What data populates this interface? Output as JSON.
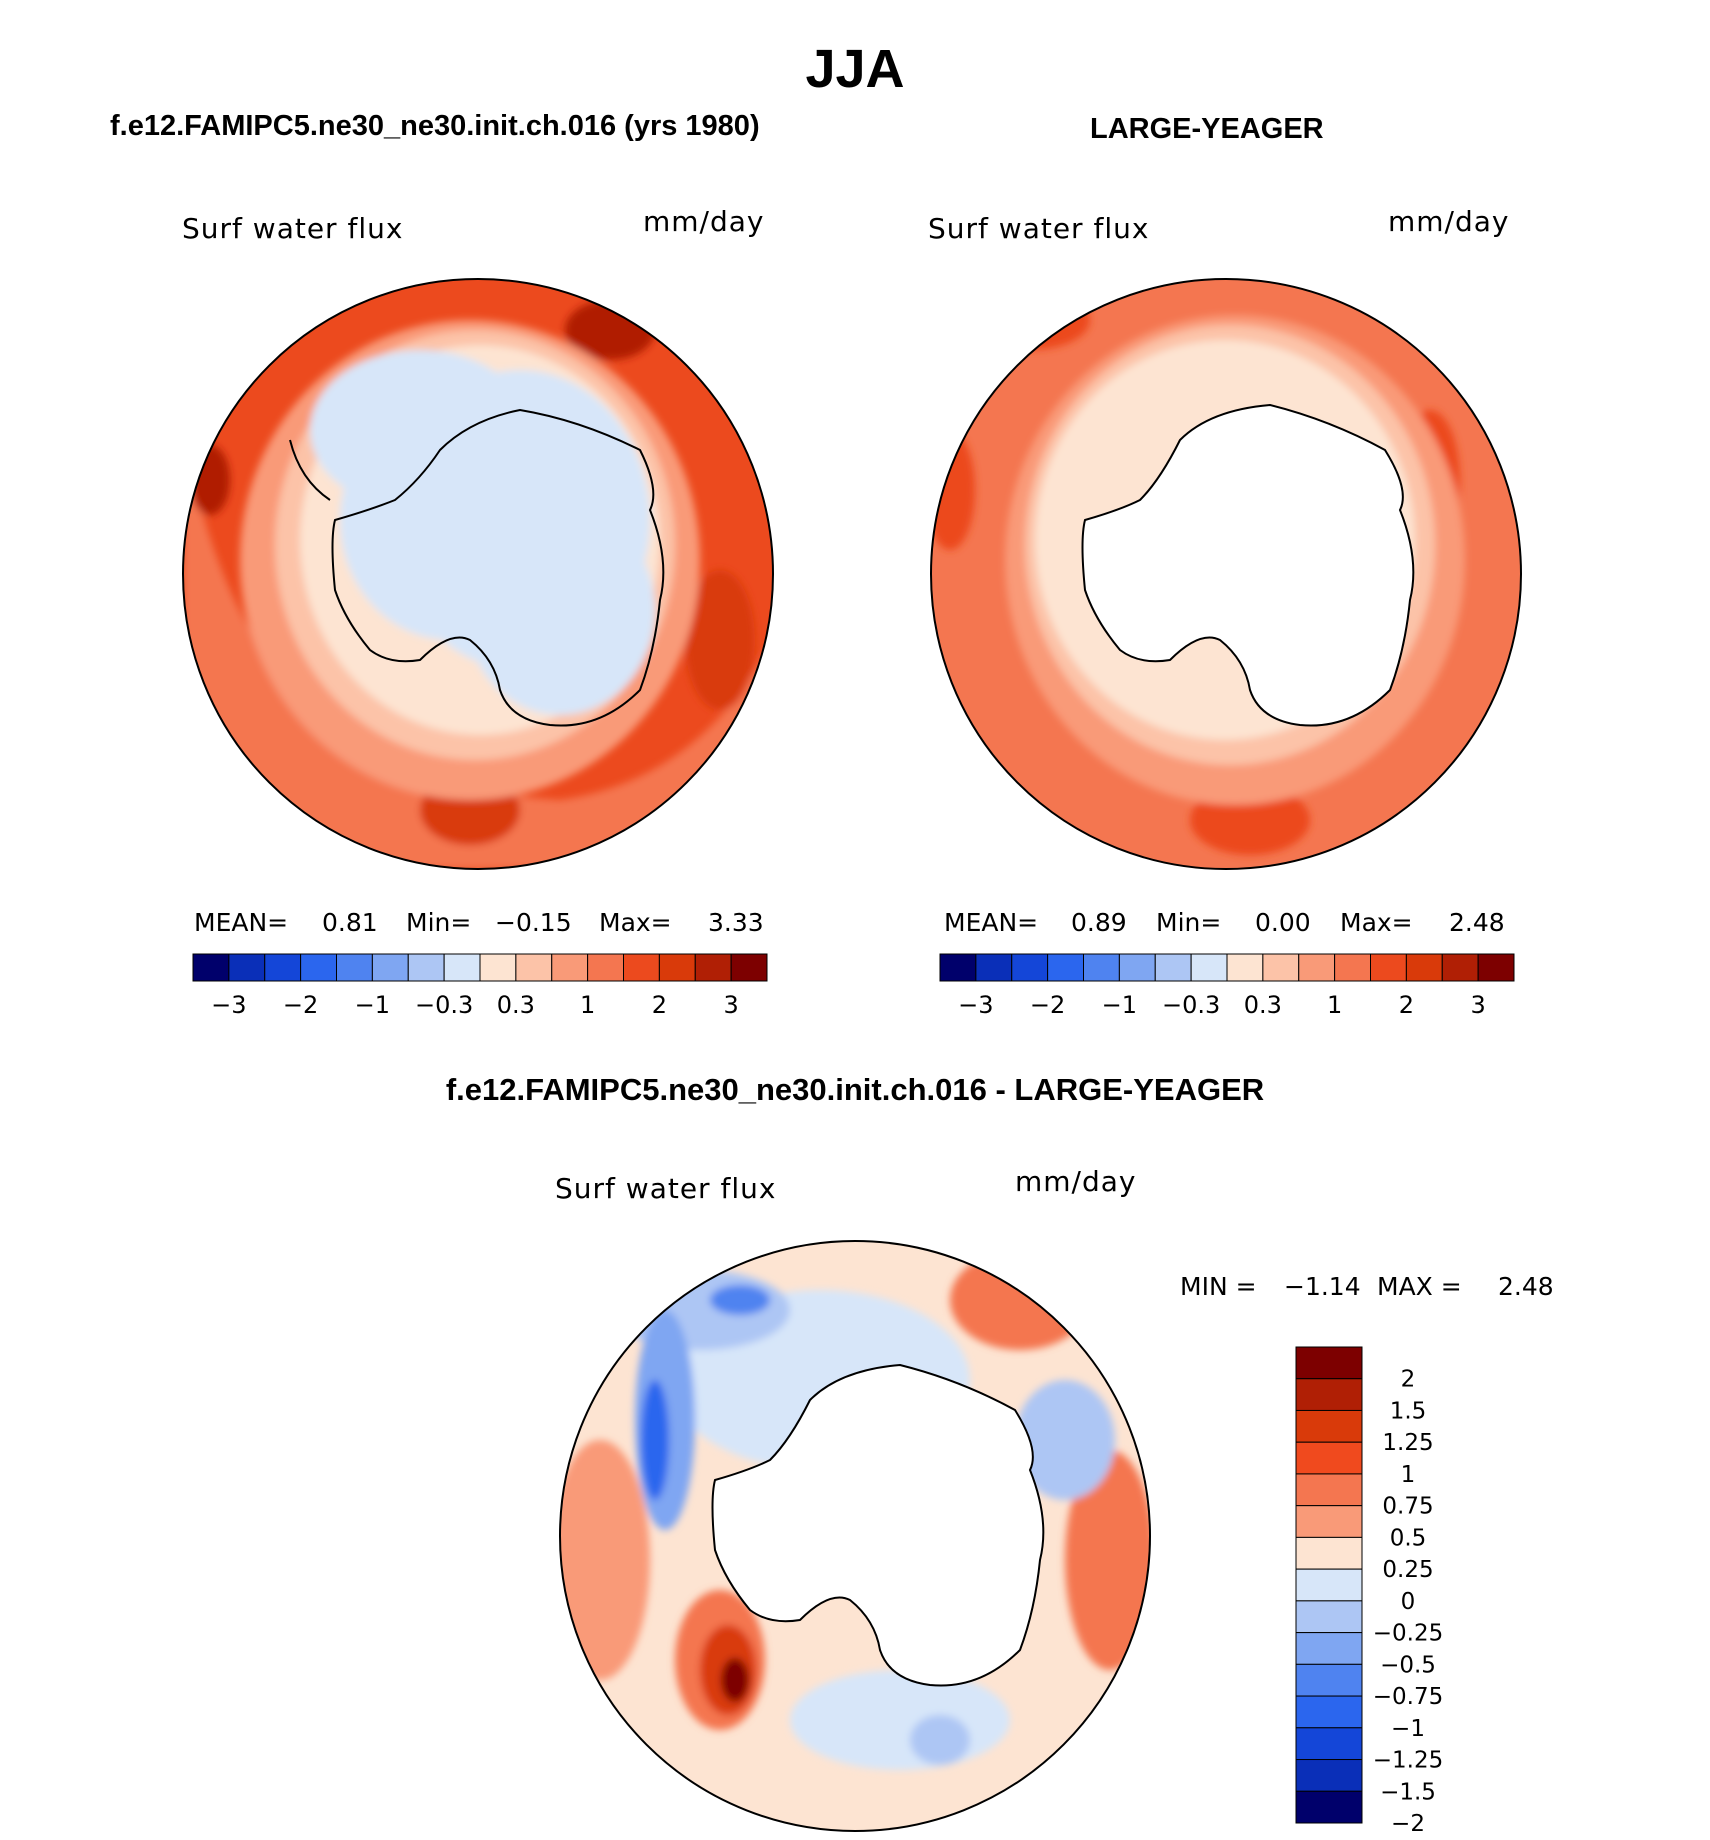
{
  "page": {
    "main_title": "JJA",
    "panel1_title": "f.e12.FAMIPC5.ne30_ne30.init.ch.016 (yrs 1980)",
    "panel2_title": "LARGE-YEAGER",
    "diff_title": "f.e12.FAMIPC5.ne30_ne30.init.ch.016 - LARGE-YEAGER"
  },
  "panels": [
    {
      "variable_label": "Surf water flux",
      "units_label": "mm/day",
      "mean_label": "MEAN=",
      "mean": "0.81",
      "min_label": "Min=",
      "min": "−0.15",
      "max_label": "Max=",
      "max": "3.33"
    },
    {
      "variable_label": "Surf water flux",
      "units_label": "mm/day",
      "mean_label": "MEAN=",
      "mean": "0.89",
      "min_label": "Min=",
      "min": "0.00",
      "max_label": "Max=",
      "max": "2.48"
    },
    {
      "variable_label": "Surf water flux",
      "units_label": "mm/day",
      "min_label": "MIN =",
      "min": "−1.14",
      "max_label": "MAX =",
      "max": "2.48"
    }
  ],
  "chart_data": [
    {
      "type": "heatmap",
      "projection": "south polar stereographic",
      "title": "f.e12.FAMIPC5.ne30_ne30.init.ch.016 (yrs 1980)",
      "variable": "Surf water flux",
      "units": "mm/day",
      "mean": 0.81,
      "min": -0.15,
      "max": 3.33,
      "colorbar": {
        "orientation": "horizontal",
        "tick_labels": [
          "−3",
          "−2",
          "−1",
          "−0.3",
          "0.3",
          "1",
          "2",
          "3"
        ],
        "colors": [
          "#00006b",
          "#0a2fb8",
          "#1446d8",
          "#2b66ee",
          "#4f83f0",
          "#7fa6f2",
          "#adc6f4",
          "#d7e6f9",
          "#fde4d2",
          "#fcc3a8",
          "#f99a78",
          "#f47650",
          "#ec4a1e",
          "#d93a0a",
          "#b01f05",
          "#7d0000"
        ]
      }
    },
    {
      "type": "heatmap",
      "projection": "south polar stereographic",
      "title": "LARGE-YEAGER",
      "variable": "Surf water flux",
      "units": "mm/day",
      "mean": 0.89,
      "min": 0.0,
      "max": 2.48,
      "colorbar": {
        "orientation": "horizontal",
        "tick_labels": [
          "−3",
          "−2",
          "−1",
          "−0.3",
          "0.3",
          "1",
          "2",
          "3"
        ],
        "colors": [
          "#00006b",
          "#0a2fb8",
          "#1446d8",
          "#2b66ee",
          "#4f83f0",
          "#7fa6f2",
          "#adc6f4",
          "#d7e6f9",
          "#fde4d2",
          "#fcc3a8",
          "#f99a78",
          "#f47650",
          "#ec4a1e",
          "#d93a0a",
          "#b01f05",
          "#7d0000"
        ]
      }
    },
    {
      "type": "heatmap",
      "projection": "south polar stereographic",
      "title": "f.e12.FAMIPC5.ne30_ne30.init.ch.016 - LARGE-YEAGER",
      "variable": "Surf water flux",
      "units": "mm/day",
      "min": -1.14,
      "max": 2.48,
      "colorbar": {
        "orientation": "vertical",
        "tick_labels": [
          "2",
          "1.5",
          "1.25",
          "1",
          "0.75",
          "0.5",
          "0.25",
          "0",
          "−0.25",
          "−0.5",
          "−0.75",
          "−1",
          "−1.25",
          "−1.5",
          "−2"
        ],
        "colors": [
          "#7d0000",
          "#b01f05",
          "#d93a0a",
          "#f04a1e",
          "#f47650",
          "#f99a78",
          "#fde4d2",
          "#d7e6f9",
          "#adc6f4",
          "#7fa6f2",
          "#4f83f0",
          "#2b66ee",
          "#1446d8",
          "#0a2fb8",
          "#00006b"
        ]
      }
    }
  ]
}
